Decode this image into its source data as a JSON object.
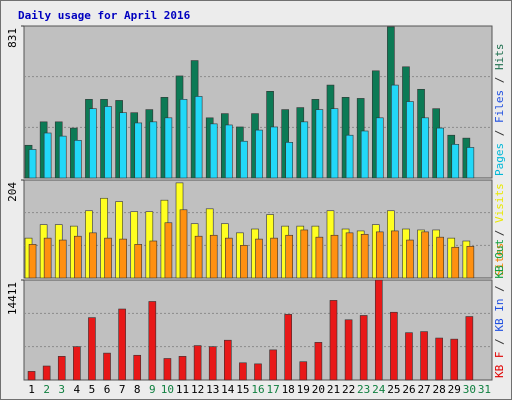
{
  "chart_data": [
    {
      "type": "bar",
      "title": "Daily usage for April 2016",
      "ylim": [
        0,
        831
      ],
      "yticks": [
        831
      ],
      "legend_separator": " / ",
      "legend": [
        {
          "text": "Pages",
          "color": "#00b8d8"
        },
        {
          "text": "Files",
          "color": "#2050e0"
        },
        {
          "text": "Hits",
          "color": "#207050"
        }
      ],
      "series": [
        {
          "color": "#0c7a55",
          "values": [
            179,
            307,
            307,
            273,
            430,
            430,
            424,
            357,
            374,
            441,
            558,
            642,
            329,
            352,
            279,
            352,
            474,
            374,
            385,
            430,
            508,
            441,
            435,
            586,
            826,
            608,
            485,
            379,
            234,
            218,
            null
          ]
        },
        {
          "color": "#22d8f8",
          "values": [
            156,
            246,
            229,
            206,
            379,
            391,
            357,
            301,
            307,
            329,
            430,
            446,
            296,
            290,
            201,
            262,
            279,
            195,
            307,
            374,
            379,
            234,
            257,
            329,
            508,
            418,
            329,
            273,
            184,
            167,
            null
          ]
        }
      ]
    },
    {
      "type": "bar",
      "ylim": [
        0,
        204
      ],
      "yticks": [
        204
      ],
      "legend_separator": " / ",
      "legend": [
        {
          "text": "Sites",
          "color": "#f08000"
        },
        {
          "text": "Visits",
          "color": "#e8e800"
        }
      ],
      "series": [
        {
          "color": "#ffff20",
          "values": [
            83,
            111,
            111,
            108,
            140,
            166,
            159,
            138,
            138,
            162,
            198,
            113,
            144,
            113,
            94,
            102,
            132,
            108,
            108,
            108,
            140,
            102,
            98,
            111,
            140,
            102,
            100,
            100,
            83,
            77,
            null
          ]
        },
        {
          "color": "#ff9010",
          "values": [
            70,
            83,
            79,
            87,
            94,
            83,
            81,
            70,
            77,
            115,
            142,
            87,
            89,
            83,
            68,
            81,
            83,
            89,
            100,
            85,
            89,
            94,
            91,
            96,
            98,
            79,
            96,
            85,
            64,
            66,
            null
          ]
        }
      ]
    },
    {
      "type": "bar",
      "ylim": [
        0,
        14411
      ],
      "yticks": [
        14411
      ],
      "legend_separator": " / ",
      "legend": [
        {
          "text": "KB F",
          "color": "#e00000"
        },
        {
          "text": "KB In",
          "color": "#2050e0"
        },
        {
          "text": "KB Out",
          "color": "#10a040"
        }
      ],
      "series": [
        {
          "color": "#e81818",
          "values": [
            1240,
            2015,
            3410,
            4805,
            8990,
            3875,
            10230,
            3565,
            11315,
            3100,
            3410,
            4960,
            4805,
            5735,
            2480,
            2325,
            4340,
            9455,
            2635,
            5425,
            11470,
            8680,
            9300,
            14411,
            9765,
            6820,
            6975,
            6045,
            5890,
            9145,
            null
          ]
        }
      ],
      "categories": [
        "1",
        "2",
        "3",
        "4",
        "5",
        "6",
        "7",
        "8",
        "9",
        "10",
        "11",
        "12",
        "13",
        "14",
        "15",
        "16",
        "17",
        "18",
        "19",
        "20",
        "21",
        "22",
        "23",
        "24",
        "25",
        "26",
        "27",
        "28",
        "29",
        "30",
        "31"
      ],
      "category_colors": [
        "#000000",
        "#108040",
        "#108040",
        "#000000",
        "#000000",
        "#000000",
        "#000000",
        "#000000",
        "#108040",
        "#108040",
        "#000000",
        "#000000",
        "#000000",
        "#000000",
        "#000000",
        "#108040",
        "#108040",
        "#000000",
        "#000000",
        "#000000",
        "#000000",
        "#000000",
        "#108040",
        "#108040",
        "#000000",
        "#000000",
        "#000000",
        "#000000",
        "#000000",
        "#108040",
        "#108040"
      ]
    }
  ]
}
